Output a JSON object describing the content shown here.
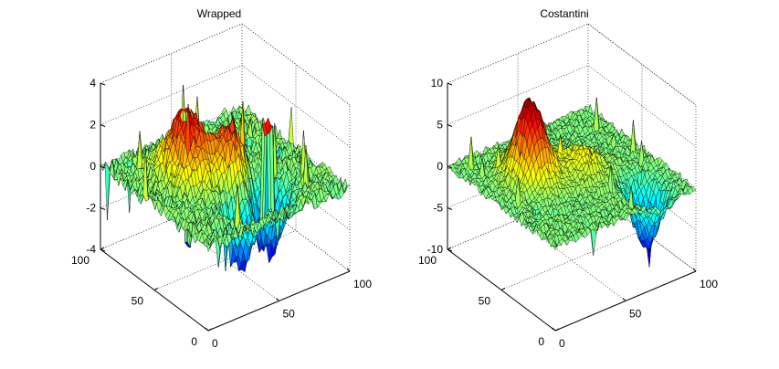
{
  "chart_data": [
    {
      "type": "surface",
      "title": "Wrapped",
      "xlabel": "",
      "ylabel": "",
      "zlabel": "",
      "zlim": [
        -4,
        4
      ],
      "xlim": [
        0,
        100
      ],
      "ylim": [
        0,
        100
      ],
      "z_ticks": [
        "4",
        "2",
        "0",
        "-2",
        "-4"
      ],
      "x_ticks": [
        "0",
        "50",
        "100"
      ],
      "y_ticks": [
        "100",
        "50",
        "0"
      ],
      "grid": true,
      "colormap": "jet",
      "features": [
        {
          "x": 30,
          "y": 55,
          "z": 3.1
        },
        {
          "x": 45,
          "y": 50,
          "z": 2.8
        },
        {
          "x": 55,
          "y": 40,
          "z": 3.0
        },
        {
          "x": 60,
          "y": 30,
          "z": -3.5
        },
        {
          "x": 40,
          "y": 20,
          "z": -3.0
        },
        {
          "x": 70,
          "y": 45,
          "z": -2.5
        }
      ]
    },
    {
      "type": "surface",
      "title": "Costantini",
      "xlabel": "",
      "ylabel": "",
      "zlabel": "",
      "zlim": [
        -10,
        10
      ],
      "xlim": [
        0,
        100
      ],
      "ylim": [
        0,
        100
      ],
      "z_ticks": [
        "10",
        "5",
        "0",
        "-5",
        "-10"
      ],
      "x_ticks": [
        "0",
        "50",
        "100"
      ],
      "y_ticks": [
        "100",
        "50",
        "0"
      ],
      "grid": true,
      "colormap": "jet",
      "features": [
        {
          "x": 30,
          "y": 55,
          "z": 9.5
        },
        {
          "x": 55,
          "y": 50,
          "z": 3.0
        },
        {
          "x": 70,
          "y": 20,
          "z": -7.5
        }
      ]
    }
  ],
  "colors": {
    "background": "#ffffff",
    "axis": "#000000",
    "grid": "#000000",
    "mesh": "#000000"
  }
}
